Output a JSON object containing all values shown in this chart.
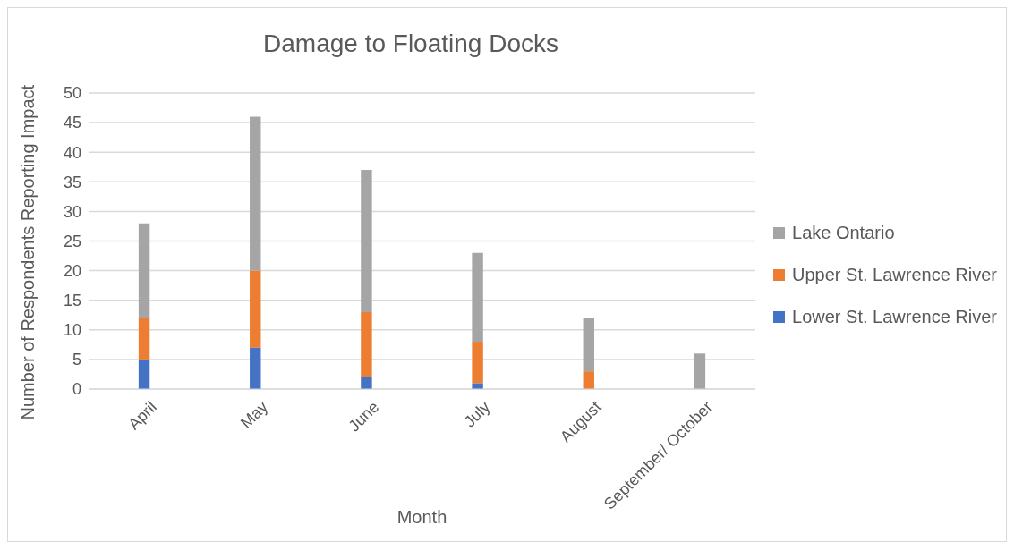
{
  "chart_data": {
    "type": "bar",
    "title": "Damage to Floating Docks",
    "xlabel": "Month",
    "ylabel": "Number of Respondents Reporting Impact",
    "categories": [
      "April",
      "May",
      "June",
      "July",
      "August",
      "September/ October"
    ],
    "stacked": true,
    "ylim": [
      0,
      50
    ],
    "yticks": [
      0,
      5,
      10,
      15,
      20,
      25,
      30,
      35,
      40,
      45,
      50
    ],
    "grid": "y",
    "legend": "right",
    "series": [
      {
        "name": "Lower St. Lawrence River",
        "color": "#4472c4",
        "values": [
          5,
          7,
          2,
          1,
          0,
          0
        ]
      },
      {
        "name": "Upper St. Lawrence River",
        "color": "#ed7d31",
        "values": [
          7,
          13,
          11,
          7,
          3,
          0
        ]
      },
      {
        "name": "Lake Ontario",
        "color": "#a5a5a5",
        "values": [
          16,
          26,
          24,
          15,
          9,
          6
        ]
      }
    ]
  }
}
